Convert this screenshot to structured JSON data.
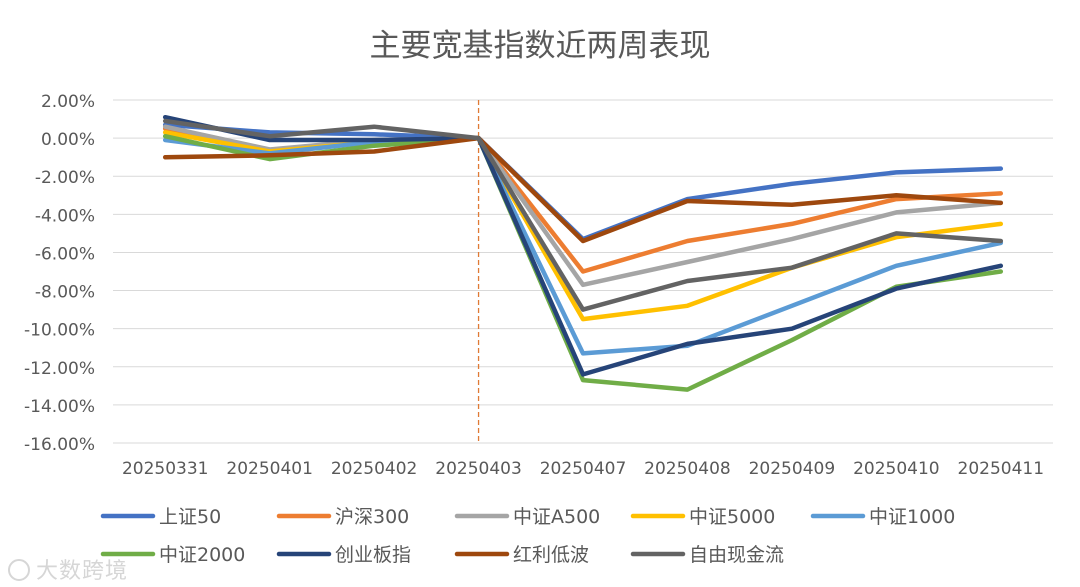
{
  "chart_data": {
    "type": "line",
    "title": "主要宽基指数近两周表现",
    "xlabel": "",
    "ylabel": "",
    "ylim": [
      -16,
      2
    ],
    "y_ticks": [
      2,
      0,
      -2,
      -4,
      -6,
      -8,
      -10,
      -12,
      -14,
      -16
    ],
    "y_tick_labels": [
      "2.00%",
      "0.00%",
      "-2.00%",
      "-4.00%",
      "-6.00%",
      "-8.00%",
      "-10.00%",
      "-12.00%",
      "-14.00%",
      "-16.00%"
    ],
    "grid": true,
    "legend_position": "bottom",
    "categories": [
      "20250331",
      "20250401",
      "20250402",
      "20250403",
      "20250407",
      "20250408",
      "20250409",
      "20250410",
      "20250411"
    ],
    "reference_line": {
      "category": "20250403",
      "color": "#e07a35"
    },
    "series": [
      {
        "name": "上证50",
        "color": "#4472c4",
        "values": [
          0.7,
          0.3,
          0.2,
          0.0,
          -5.3,
          -3.2,
          -2.4,
          -1.8,
          -1.6
        ]
      },
      {
        "name": "沪深300",
        "color": "#ed7d31",
        "values": [
          0.5,
          -0.7,
          -0.2,
          0.0,
          -7.0,
          -5.4,
          -4.5,
          -3.2,
          -2.9
        ]
      },
      {
        "name": "中证A500",
        "color": "#a5a5a5",
        "values": [
          0.6,
          -0.6,
          -0.1,
          0.0,
          -7.7,
          -6.5,
          -5.3,
          -3.9,
          -3.4
        ]
      },
      {
        "name": "中证5000",
        "color": "#ffc000",
        "values": [
          0.3,
          -0.7,
          -0.2,
          0.0,
          -9.5,
          -8.8,
          -6.8,
          -5.2,
          -4.5
        ]
      },
      {
        "name": "中证1000",
        "color": "#5b9bd5",
        "values": [
          -0.1,
          -0.8,
          -0.2,
          0.0,
          -11.3,
          -10.9,
          -8.8,
          -6.7,
          -5.5
        ]
      },
      {
        "name": "中证2000",
        "color": "#70ad47",
        "values": [
          0.1,
          -1.1,
          -0.4,
          0.0,
          -12.7,
          -13.2,
          -10.6,
          -7.8,
          -7.0
        ]
      },
      {
        "name": "创业板指",
        "color": "#264478",
        "values": [
          1.1,
          -0.1,
          -0.1,
          0.0,
          -12.4,
          -10.8,
          -10.0,
          -7.9,
          -6.7
        ]
      },
      {
        "name": "红利低波",
        "color": "#9e480e",
        "values": [
          -1.0,
          -0.9,
          -0.7,
          0.0,
          -5.4,
          -3.3,
          -3.5,
          -3.0,
          -3.4
        ]
      },
      {
        "name": "自由现金流",
        "color": "#636363",
        "values": [
          0.9,
          0.1,
          0.6,
          0.0,
          -9.0,
          -7.5,
          -6.8,
          -5.0,
          -5.4
        ]
      }
    ]
  },
  "watermark": {
    "text": "大数跨境"
  }
}
